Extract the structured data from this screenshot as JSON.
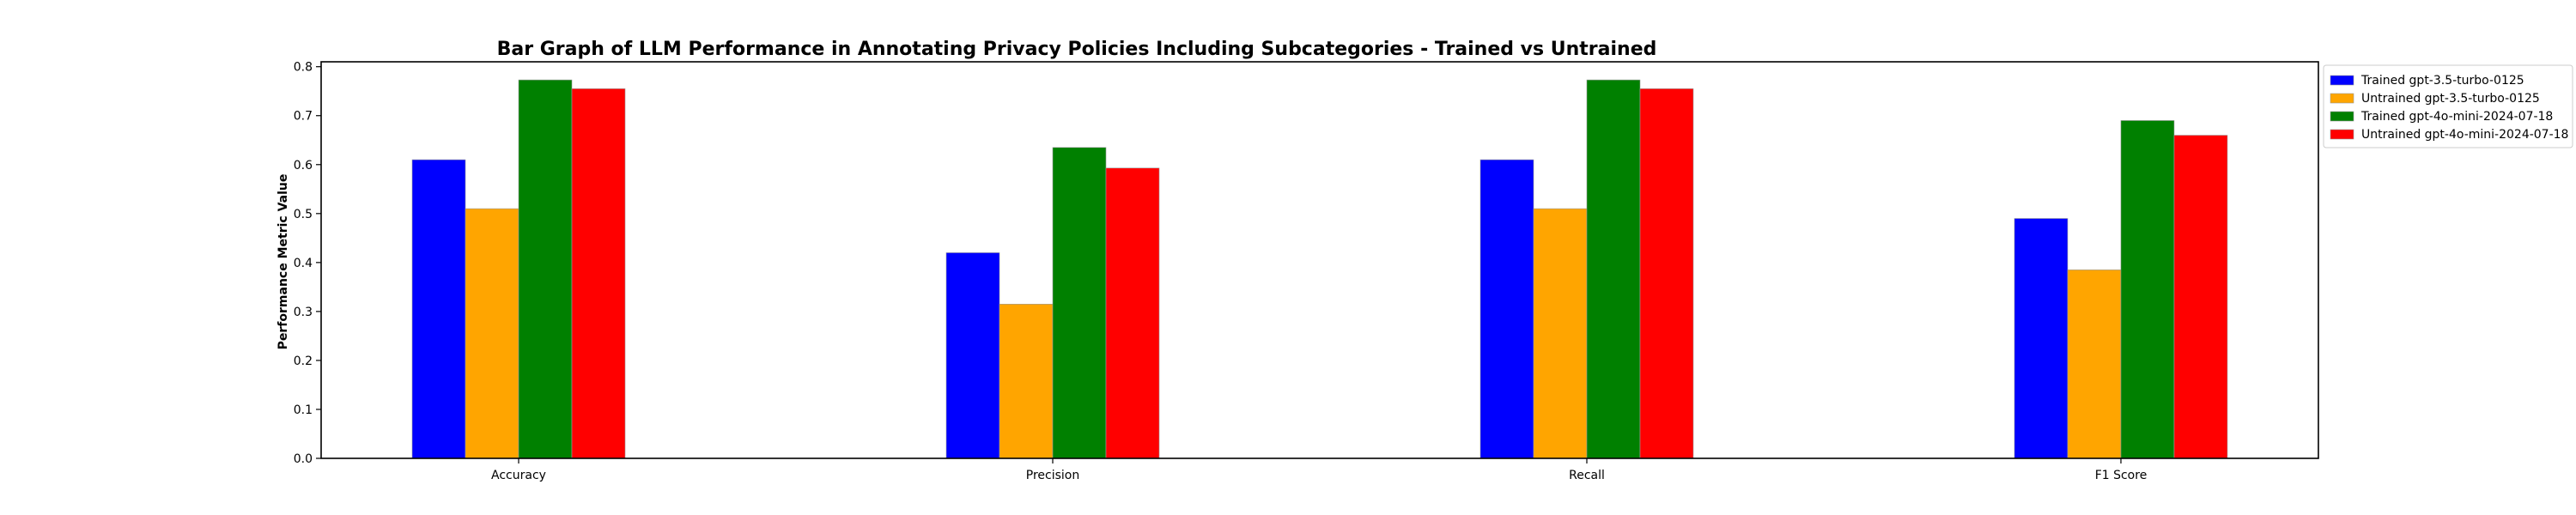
{
  "chart_data": {
    "type": "bar",
    "title": "Bar Graph of LLM Performance in Annotating Privacy Policies Including Subcategories - Trained vs Untrained",
    "xlabel": "",
    "ylabel": "Performance Metric Value",
    "categories": [
      "Accuracy",
      "Precision",
      "Recall",
      "F1 Score"
    ],
    "series": [
      {
        "name": "Trained gpt-3.5-turbo-0125",
        "color": "#0000ff",
        "values": [
          0.61,
          0.42,
          0.61,
          0.49
        ]
      },
      {
        "name": "Untrained gpt-3.5-turbo-0125",
        "color": "#ffa500",
        "values": [
          0.51,
          0.315,
          0.51,
          0.385
        ]
      },
      {
        "name": "Trained gpt-4o-mini-2024-07-18",
        "color": "#008000",
        "values": [
          0.773,
          0.635,
          0.773,
          0.69
        ]
      },
      {
        "name": "Untrained gpt-4o-mini-2024-07-18",
        "color": "#ff0000",
        "values": [
          0.755,
          0.593,
          0.755,
          0.66
        ]
      }
    ],
    "ylim": [
      0,
      0.81
    ],
    "yticks": [
      "0.0",
      "0.1",
      "0.2",
      "0.3",
      "0.4",
      "0.5",
      "0.6",
      "0.7",
      "0.8"
    ],
    "grid": false,
    "legend_position": "outside-top-right"
  }
}
